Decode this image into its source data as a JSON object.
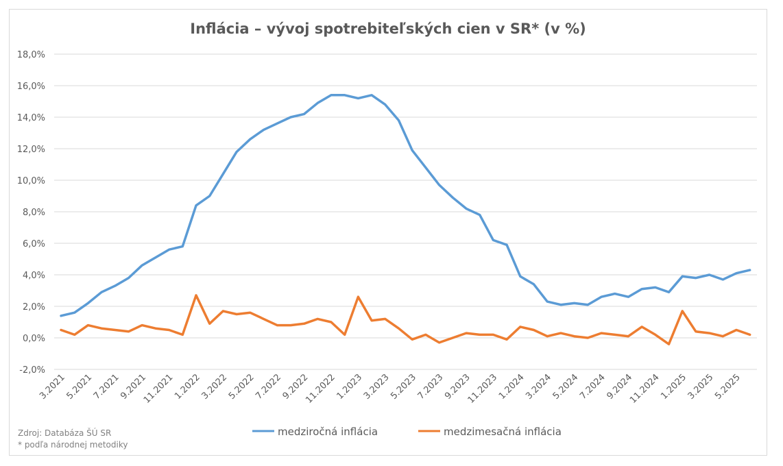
{
  "chart_data": {
    "type": "line",
    "title": "Inflácia –  vývoj spotrebiteľských cien v SR* (v %)",
    "xlabel": "",
    "ylabel": "",
    "ylim": [
      -2,
      18
    ],
    "yticks": [
      "-2,0%",
      "0,0%",
      "2,0%",
      "4,0%",
      "6,0%",
      "8,0%",
      "10,0%",
      "12,0%",
      "14,0%",
      "16,0%",
      "18,0%"
    ],
    "grid": true,
    "legend_position": "bottom",
    "x": [
      "3.2021",
      "4.2021",
      "5.2021",
      "6.2021",
      "7.2021",
      "8.2021",
      "9.2021",
      "10.2021",
      "11.2021",
      "12.2021",
      "1.2022",
      "2.2022",
      "3.2022",
      "4.2022",
      "5.2022",
      "6.2022",
      "7.2022",
      "8.2022",
      "9.2022",
      "10.2022",
      "11.2022",
      "12.2022",
      "1.2023",
      "2.2023",
      "3.2023",
      "4.2023",
      "5.2023",
      "6.2023",
      "7.2023",
      "8.2023",
      "9.2023",
      "10.2023",
      "11.2023",
      "12.2023",
      "1.2024",
      "2.2024",
      "3.2024",
      "4.2024",
      "5.2024",
      "6.2024",
      "7.2024",
      "8.2024",
      "9.2024",
      "10.2024",
      "11.2024",
      "12.2024",
      "1.2025",
      "2.2025",
      "3.2025",
      "4.2025",
      "5.2025",
      "6.2025"
    ],
    "x_tick_labels": [
      "3.2021",
      "5.2021",
      "7.2021",
      "9.2021",
      "11.2021",
      "1.2022",
      "3.2022",
      "5.2022",
      "7.2022",
      "9.2022",
      "11.2022",
      "1.2023",
      "3.2023",
      "5.2023",
      "7.2023",
      "9.2023",
      "11.2023",
      "1.2024",
      "3.2024",
      "5.2024",
      "7.2024",
      "9.2024",
      "11.2024",
      "1.2025",
      "3.2025",
      "5.2025"
    ],
    "series": [
      {
        "name": "medziročná inflácia",
        "color": "#5b9bd5",
        "values": [
          1.4,
          1.6,
          2.2,
          2.9,
          3.3,
          3.8,
          4.6,
          5.1,
          5.6,
          5.8,
          8.4,
          9.0,
          10.4,
          11.8,
          12.6,
          13.2,
          13.6,
          14.0,
          14.2,
          14.9,
          15.4,
          15.4,
          15.2,
          15.4,
          14.8,
          13.8,
          11.9,
          10.8,
          9.7,
          8.9,
          8.2,
          7.8,
          6.2,
          5.9,
          3.9,
          3.4,
          2.3,
          2.1,
          2.2,
          2.1,
          2.6,
          2.8,
          2.6,
          3.1,
          3.2,
          2.9,
          3.9,
          3.8,
          4.0,
          3.7,
          4.1,
          4.3
        ]
      },
      {
        "name": "medzimesačná inflácia",
        "color": "#ed7d31",
        "values": [
          0.5,
          0.2,
          0.8,
          0.6,
          0.5,
          0.4,
          0.8,
          0.6,
          0.5,
          0.2,
          2.7,
          0.9,
          1.7,
          1.5,
          1.6,
          1.2,
          0.8,
          0.8,
          0.9,
          1.2,
          1.0,
          0.2,
          2.6,
          1.1,
          1.2,
          0.6,
          -0.1,
          0.2,
          -0.3,
          0.0,
          0.3,
          0.2,
          0.2,
          -0.1,
          0.7,
          0.5,
          0.1,
          0.3,
          0.1,
          0.0,
          0.3,
          0.2,
          0.1,
          0.7,
          0.2,
          -0.4,
          1.7,
          0.4,
          0.3,
          0.1,
          0.5,
          0.2
        ]
      }
    ],
    "footnote_source": "Zdroj: Databáza ŠÚ SR",
    "footnote_method": "* podľa národnej metodiky"
  }
}
